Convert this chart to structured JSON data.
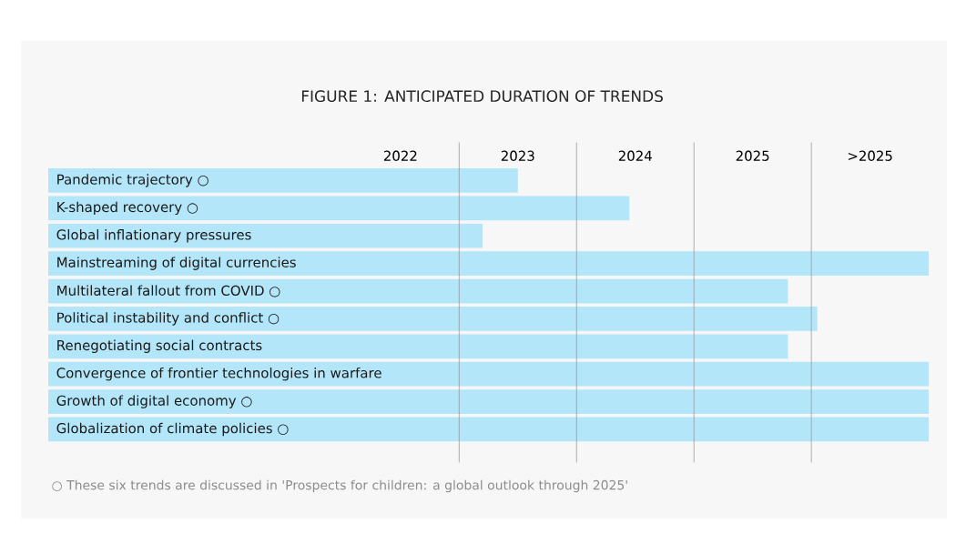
{
  "chart_data": {
    "type": "bar",
    "orientation": "horizontal",
    "title": "FIGURE 1: ANTICIPATED DURATION OF TRENDS",
    "categories": [
      "Pandemic trajectory ○",
      "K-shaped recovery ○",
      "Global inflationary pressures",
      "Mainstreaming of digital currencies",
      "Multilateral fallout from COVID ○",
      "Political instability and conflict ○",
      "Renegotiating social contracts",
      "Convergence of frontier technologies in warfare",
      "Growth of digital economy ○",
      "Globalization of climate policies ○"
    ],
    "base": [
      2019,
      2019,
      2019,
      2019,
      2019,
      2019,
      2019,
      2019,
      2019,
      2019
    ],
    "values": [
      4.0,
      4.95,
      3.7,
      7.5,
      6.3,
      6.55,
      6.3,
      7.5,
      7.5,
      7.5
    ],
    "color": "#b3e6f8",
    "xlim": [
      2019,
      2026.5
    ],
    "xticks": [
      2022,
      2023,
      2024,
      2025,
      {
        "value": 2026,
        "label": ">2025"
      }
    ],
    "ref_lines": [
      {
        "axis": "x",
        "value": 2022.5,
        "color": "#999999"
      },
      {
        "axis": "x",
        "value": 2023.5,
        "color": "#999999"
      },
      {
        "axis": "x",
        "value": 2024.5,
        "color": "#999999"
      },
      {
        "axis": "x",
        "value": 2025.5,
        "color": "#999999"
      }
    ],
    "annotations": [
      "○ These six trends are discussed in 'Prospects for children: a global outlook through 2025'"
    ]
  }
}
